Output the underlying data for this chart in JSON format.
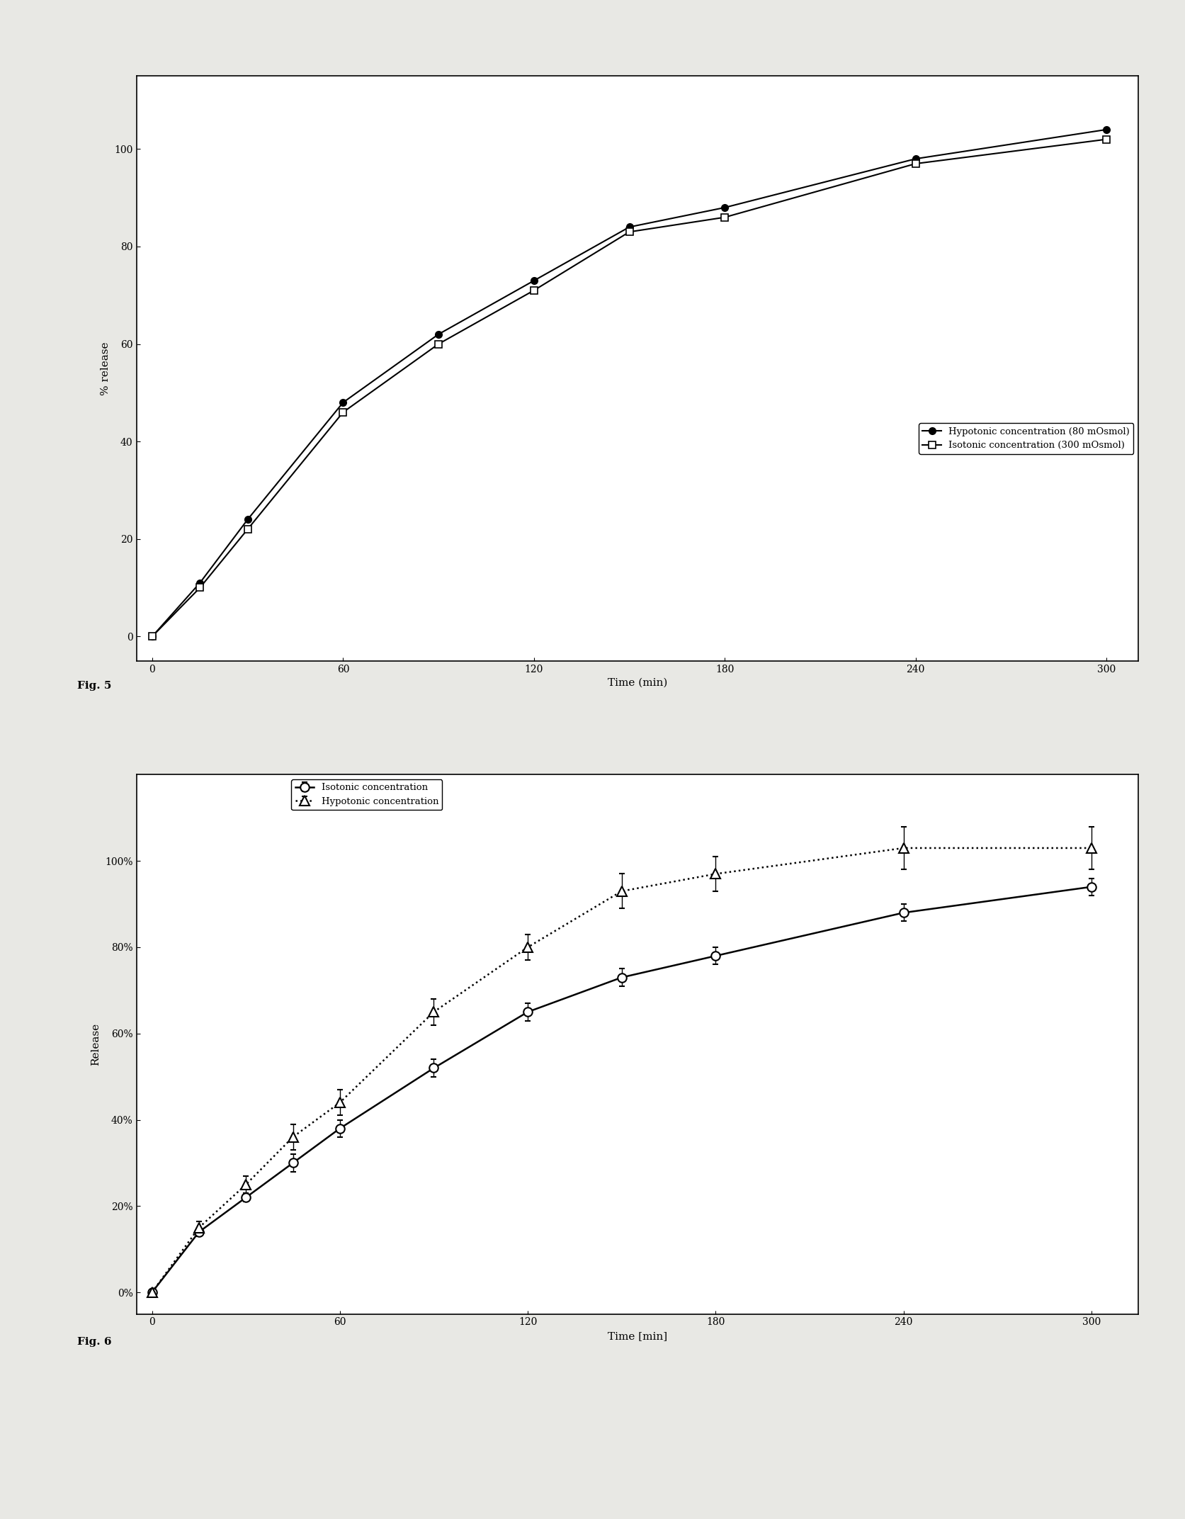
{
  "fig5": {
    "hypotonic": {
      "x": [
        0,
        15,
        30,
        60,
        90,
        120,
        150,
        180,
        240,
        300
      ],
      "y": [
        0,
        11,
        24,
        48,
        62,
        73,
        84,
        88,
        98,
        104
      ],
      "label": "Hypotonic concentration (80 mOsmol)",
      "linestyle": "-"
    },
    "isotonic": {
      "x": [
        0,
        15,
        30,
        60,
        90,
        120,
        150,
        180,
        240,
        300
      ],
      "y": [
        0,
        10,
        22,
        46,
        60,
        71,
        83,
        86,
        97,
        102
      ],
      "label": "Isotonic concentration (300 mOsmol)",
      "linestyle": "-"
    },
    "xlabel": "Time (min)",
    "ylabel": "% release",
    "xlim": [
      -5,
      310
    ],
    "ylim": [
      -5,
      115
    ],
    "xticks": [
      0,
      60,
      120,
      180,
      240,
      300
    ],
    "yticks": [
      0,
      20,
      40,
      60,
      80,
      100
    ],
    "fig_label": "Fig. 5"
  },
  "fig6": {
    "isotonic": {
      "x": [
        0,
        15,
        30,
        45,
        60,
        90,
        120,
        150,
        180,
        240,
        300
      ],
      "y": [
        0,
        14,
        22,
        30,
        38,
        52,
        65,
        73,
        78,
        88,
        94
      ],
      "yerr": [
        0,
        1,
        1,
        2,
        2,
        2,
        2,
        2,
        2,
        2,
        2
      ],
      "label": "Isotonic concentration",
      "linestyle": "-"
    },
    "hypotonic": {
      "x": [
        0,
        15,
        30,
        45,
        60,
        90,
        120,
        150,
        180,
        240,
        300
      ],
      "y": [
        0,
        15,
        25,
        36,
        44,
        65,
        80,
        93,
        97,
        103,
        103
      ],
      "yerr": [
        0,
        1.5,
        2,
        3,
        3,
        3,
        3,
        4,
        4,
        5,
        5
      ],
      "label": "Hypotonic concentration",
      "linestyle": ":"
    },
    "xlabel": "Time [min]",
    "ylabel": "Release",
    "xlim": [
      -5,
      315
    ],
    "ylim": [
      -5,
      120
    ],
    "xticks": [
      0,
      60,
      120,
      180,
      240,
      300
    ],
    "yticks_vals": [
      0,
      20,
      40,
      60,
      80,
      100
    ],
    "yticks_labels": [
      "0%",
      "20%",
      "40%",
      "60%",
      "80%",
      "100%"
    ],
    "fig_label": "Fig. 6"
  },
  "bg_color": "#ffffff",
  "paper_color": "#e8e8e4"
}
